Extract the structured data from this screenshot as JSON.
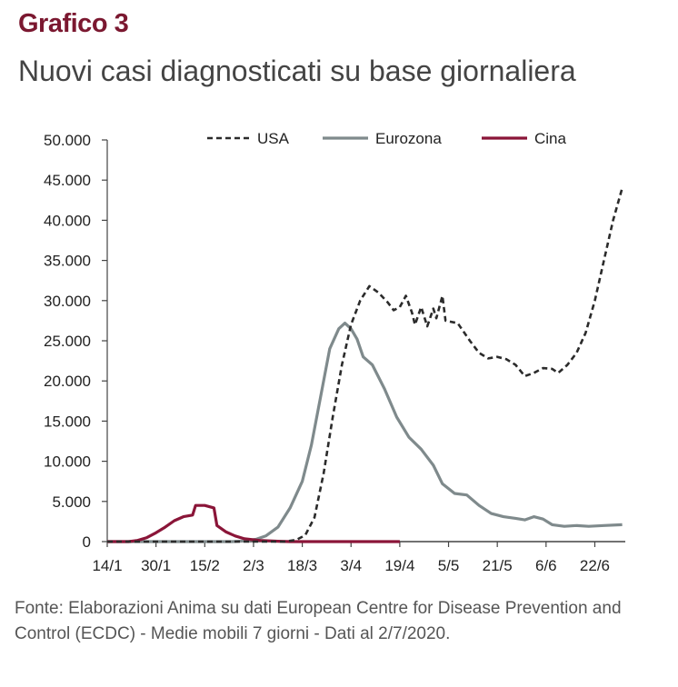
{
  "header": {
    "label": "Grafico 3",
    "title": "Nuovi casi diagnosticati su base giornaliera"
  },
  "source_note": "Fonte: Elaborazioni Anima su dati European Centre for Disease Prevention and Control  (ECDC) - Medie mobili 7 giorni - Dati al 2/7/2020.",
  "colors": {
    "usa": "#2b2b2b",
    "eurozona": "#7f8a8c",
    "cina": "#8a1538",
    "axis": "#444444"
  },
  "chart_data": {
    "type": "line",
    "x_unit": "day of 2020",
    "xlim": [
      "2020-01-14",
      "2020-07-02"
    ],
    "x_ticks": [
      {
        "date": "2020-01-14",
        "label": "14/1"
      },
      {
        "date": "2020-01-30",
        "label": "30/1"
      },
      {
        "date": "2020-02-15",
        "label": "15/2"
      },
      {
        "date": "2020-03-02",
        "label": "2/3"
      },
      {
        "date": "2020-03-18",
        "label": "18/3"
      },
      {
        "date": "2020-04-03",
        "label": "3/4"
      },
      {
        "date": "2020-04-19",
        "label": "19/4"
      },
      {
        "date": "2020-05-05",
        "label": "5/5"
      },
      {
        "date": "2020-05-21",
        "label": "21/5"
      },
      {
        "date": "2020-06-06",
        "label": "6/6"
      },
      {
        "date": "2020-06-22",
        "label": "22/6"
      }
    ],
    "ylim": [
      0,
      50000
    ],
    "y_ticks": [
      "0",
      "5.000",
      "10.000",
      "15.000",
      "20.000",
      "25.000",
      "30.000",
      "35.000",
      "40.000",
      "45.000",
      "50.000"
    ],
    "y_tick_values": [
      0,
      5000,
      10000,
      15000,
      20000,
      25000,
      30000,
      35000,
      40000,
      45000,
      50000
    ],
    "legend_position": "top",
    "series": [
      {
        "name": "USA",
        "style": "dashed",
        "color": "#2b2b2b",
        "points": [
          [
            "2020-01-14",
            0
          ],
          [
            "2020-03-12",
            0
          ],
          [
            "2020-03-16",
            200
          ],
          [
            "2020-03-19",
            800
          ],
          [
            "2020-03-22",
            3000
          ],
          [
            "2020-03-25",
            8500
          ],
          [
            "2020-03-28",
            15500
          ],
          [
            "2020-03-31",
            22000
          ],
          [
            "2020-04-03",
            27000
          ],
          [
            "2020-04-06",
            30000
          ],
          [
            "2020-04-09",
            31800
          ],
          [
            "2020-04-12",
            31000
          ],
          [
            "2020-04-15",
            29800
          ],
          [
            "2020-04-17",
            28800
          ],
          [
            "2020-04-19",
            29200
          ],
          [
            "2020-04-21",
            30600
          ],
          [
            "2020-04-23",
            28500
          ],
          [
            "2020-04-24",
            27000
          ],
          [
            "2020-04-26",
            29200
          ],
          [
            "2020-04-28",
            26800
          ],
          [
            "2020-04-30",
            29000
          ],
          [
            "2020-05-01",
            27800
          ],
          [
            "2020-05-03",
            30600
          ],
          [
            "2020-05-04",
            27500
          ],
          [
            "2020-05-08",
            27200
          ],
          [
            "2020-05-12",
            25000
          ],
          [
            "2020-05-15",
            23500
          ],
          [
            "2020-05-18",
            22800
          ],
          [
            "2020-05-21",
            23000
          ],
          [
            "2020-05-24",
            22700
          ],
          [
            "2020-05-27",
            22000
          ],
          [
            "2020-05-30",
            20600
          ],
          [
            "2020-06-02",
            21000
          ],
          [
            "2020-06-05",
            21600
          ],
          [
            "2020-06-08",
            21500
          ],
          [
            "2020-06-10",
            21000
          ],
          [
            "2020-06-13",
            22000
          ],
          [
            "2020-06-16",
            23500
          ],
          [
            "2020-06-19",
            26000
          ],
          [
            "2020-06-22",
            30000
          ],
          [
            "2020-06-25",
            35000
          ],
          [
            "2020-06-28",
            40000
          ],
          [
            "2020-07-01",
            44000
          ]
        ]
      },
      {
        "name": "Eurozona",
        "style": "solid",
        "color": "#7f8a8c",
        "points": [
          [
            "2020-01-14",
            0
          ],
          [
            "2020-02-24",
            0
          ],
          [
            "2020-02-28",
            80
          ],
          [
            "2020-03-03",
            300
          ],
          [
            "2020-03-06",
            700
          ],
          [
            "2020-03-10",
            1800
          ],
          [
            "2020-03-14",
            4200
          ],
          [
            "2020-03-18",
            7500
          ],
          [
            "2020-03-21",
            12000
          ],
          [
            "2020-03-24",
            18000
          ],
          [
            "2020-03-27",
            24000
          ],
          [
            "2020-03-30",
            26500
          ],
          [
            "2020-04-01",
            27200
          ],
          [
            "2020-04-03",
            26500
          ],
          [
            "2020-04-05",
            25200
          ],
          [
            "2020-04-07",
            23000
          ],
          [
            "2020-04-10",
            22000
          ],
          [
            "2020-04-14",
            19000
          ],
          [
            "2020-04-18",
            15500
          ],
          [
            "2020-04-22",
            13000
          ],
          [
            "2020-04-26",
            11500
          ],
          [
            "2020-04-30",
            9500
          ],
          [
            "2020-05-03",
            7200
          ],
          [
            "2020-05-07",
            6000
          ],
          [
            "2020-05-11",
            5800
          ],
          [
            "2020-05-15",
            4500
          ],
          [
            "2020-05-19",
            3500
          ],
          [
            "2020-05-23",
            3100
          ],
          [
            "2020-05-27",
            2900
          ],
          [
            "2020-05-30",
            2700
          ],
          [
            "2020-06-02",
            3100
          ],
          [
            "2020-06-05",
            2800
          ],
          [
            "2020-06-08",
            2100
          ],
          [
            "2020-06-12",
            1900
          ],
          [
            "2020-06-16",
            2000
          ],
          [
            "2020-06-20",
            1900
          ],
          [
            "2020-06-25",
            2000
          ],
          [
            "2020-07-01",
            2100
          ]
        ]
      },
      {
        "name": "Cina",
        "style": "solid",
        "color": "#8a1538",
        "points": [
          [
            "2020-01-14",
            0
          ],
          [
            "2020-01-21",
            0
          ],
          [
            "2020-01-24",
            150
          ],
          [
            "2020-01-27",
            500
          ],
          [
            "2020-01-30",
            1100
          ],
          [
            "2020-02-02",
            1800
          ],
          [
            "2020-02-05",
            2600
          ],
          [
            "2020-02-08",
            3100
          ],
          [
            "2020-02-11",
            3300
          ],
          [
            "2020-02-12",
            4500
          ],
          [
            "2020-02-15",
            4500
          ],
          [
            "2020-02-18",
            4200
          ],
          [
            "2020-02-19",
            2000
          ],
          [
            "2020-02-22",
            1200
          ],
          [
            "2020-02-25",
            700
          ],
          [
            "2020-02-28",
            350
          ],
          [
            "2020-03-04",
            150
          ],
          [
            "2020-03-10",
            50
          ],
          [
            "2020-03-14",
            0
          ],
          [
            "2020-04-19",
            0
          ]
        ]
      }
    ]
  }
}
